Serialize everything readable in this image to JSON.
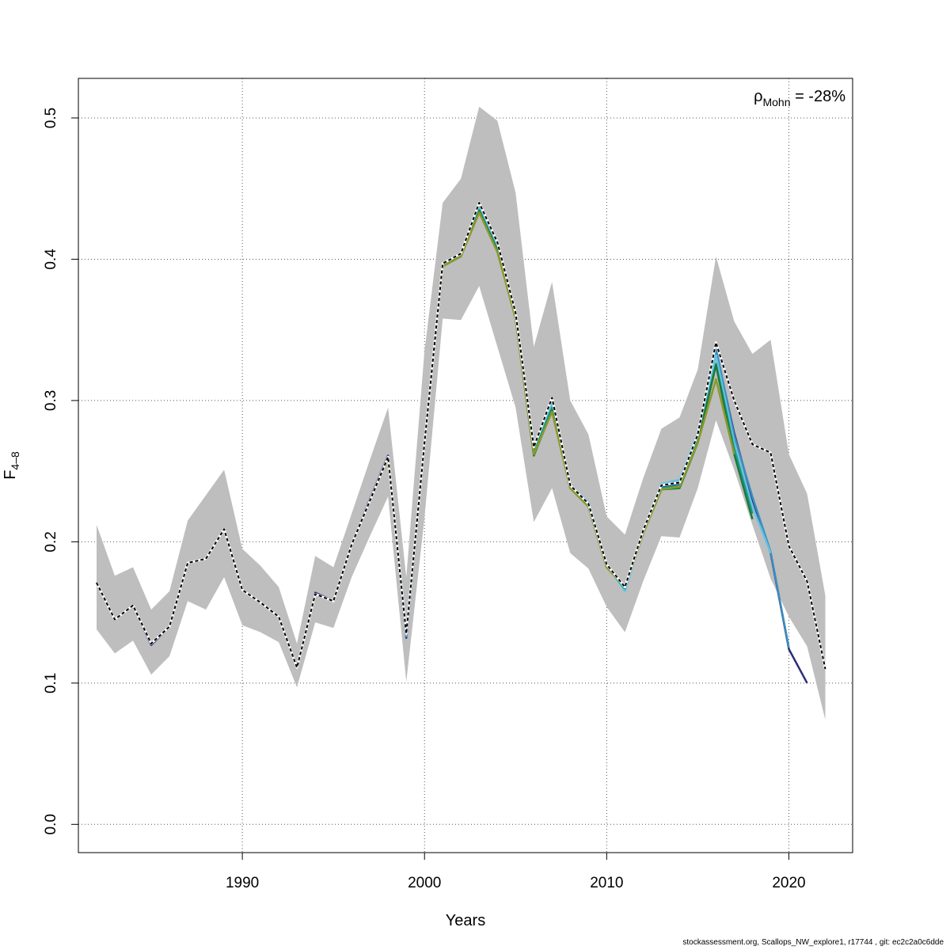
{
  "chart_data": {
    "type": "line",
    "xlabel": "Years",
    "ylabel_main": "F",
    "ylabel_sub": "4–8",
    "xlim": [
      1981,
      2023.5
    ],
    "ylim": [
      -0.02,
      0.528
    ],
    "xticks": [
      1990,
      2000,
      2010,
      2020
    ],
    "yticks": [
      "0.0",
      "0.1",
      "0.2",
      "0.3",
      "0.4",
      "0.5"
    ],
    "grid": true,
    "annotation": {
      "symbol": "ρ",
      "sub": "Mohn",
      "text": " = -28%",
      "placement": "top-right"
    },
    "confidence_band": {
      "x": [
        1982,
        1983,
        1984,
        1985,
        1986,
        1987,
        1988,
        1989,
        1990,
        1991,
        1992,
        1993,
        1994,
        1995,
        1996,
        1997,
        1998,
        1999,
        2000,
        2001,
        2002,
        2003,
        2004,
        2005,
        2006,
        2007,
        2008,
        2009,
        2010,
        2011,
        2012,
        2013,
        2014,
        2015,
        2016,
        2017,
        2018,
        2019,
        2020,
        2021,
        2022
      ],
      "upper": [
        0.212,
        0.176,
        0.182,
        0.152,
        0.165,
        0.215,
        0.233,
        0.251,
        0.195,
        0.183,
        0.168,
        0.128,
        0.19,
        0.182,
        0.22,
        0.258,
        0.295,
        0.175,
        0.335,
        0.44,
        0.457,
        0.508,
        0.498,
        0.447,
        0.338,
        0.384,
        0.3,
        0.276,
        0.218,
        0.205,
        0.245,
        0.28,
        0.288,
        0.322,
        0.402,
        0.356,
        0.333,
        0.343,
        0.262,
        0.234,
        0.162
      ],
      "lower": [
        0.138,
        0.121,
        0.13,
        0.106,
        0.119,
        0.158,
        0.152,
        0.175,
        0.141,
        0.136,
        0.129,
        0.097,
        0.143,
        0.139,
        0.175,
        0.204,
        0.232,
        0.101,
        0.217,
        0.358,
        0.357,
        0.381,
        0.338,
        0.295,
        0.214,
        0.238,
        0.192,
        0.181,
        0.154,
        0.136,
        0.172,
        0.204,
        0.203,
        0.238,
        0.286,
        0.251,
        0.212,
        0.174,
        0.147,
        0.126,
        0.074
      ]
    },
    "series": [
      {
        "color": "#2c2e7a",
        "width": 2.5,
        "dashed": false,
        "x": [
          1982,
          1983,
          1984,
          1985,
          1986,
          1987,
          1988,
          1989,
          1990,
          1991,
          1992,
          1993,
          1994,
          1995,
          1996,
          1997,
          1998,
          1999,
          2000,
          2001,
          2002,
          2003,
          2004,
          2005,
          2006,
          2007,
          2008,
          2009,
          2010,
          2011,
          2012,
          2013,
          2014,
          2015,
          2016,
          2017,
          2018,
          2019,
          2020,
          2021
        ],
        "y": [
          0.171,
          0.145,
          0.155,
          0.127,
          0.14,
          0.185,
          0.188,
          0.209,
          0.166,
          0.157,
          0.147,
          0.111,
          0.164,
          0.158,
          0.198,
          0.23,
          0.261,
          0.132,
          0.27,
          0.397,
          0.403,
          0.438,
          0.41,
          0.36,
          0.265,
          0.298,
          0.24,
          0.226,
          0.184,
          0.167,
          0.208,
          0.239,
          0.241,
          0.274,
          0.335,
          0.277,
          0.23,
          0.192,
          0.124,
          0.1
        ]
      },
      {
        "color": "#3b8fc0",
        "width": 2.5,
        "dashed": false,
        "x": [
          1982,
          1983,
          1984,
          1985,
          1986,
          1987,
          1988,
          1989,
          1990,
          1991,
          1992,
          1993,
          1994,
          1995,
          1996,
          1997,
          1998,
          1999,
          2000,
          2001,
          2002,
          2003,
          2004,
          2005,
          2006,
          2007,
          2008,
          2009,
          2010,
          2011,
          2012,
          2013,
          2014,
          2015,
          2016,
          2017,
          2018,
          2019,
          2020
        ],
        "y": [
          0.171,
          0.145,
          0.155,
          0.128,
          0.14,
          0.185,
          0.188,
          0.209,
          0.166,
          0.157,
          0.147,
          0.111,
          0.163,
          0.158,
          0.198,
          0.229,
          0.26,
          0.133,
          0.27,
          0.397,
          0.403,
          0.437,
          0.409,
          0.36,
          0.266,
          0.298,
          0.24,
          0.227,
          0.184,
          0.166,
          0.208,
          0.24,
          0.243,
          0.276,
          0.337,
          0.275,
          0.232,
          0.193,
          0.125
        ]
      },
      {
        "color": "#66c3e2",
        "width": 2.5,
        "dashed": false,
        "x": [
          1982,
          1983,
          1984,
          1985,
          1986,
          1987,
          1988,
          1989,
          1990,
          1991,
          1992,
          1993,
          1994,
          1995,
          1996,
          1997,
          1998,
          1999,
          2000,
          2001,
          2002,
          2003,
          2004,
          2005,
          2006,
          2007,
          2008,
          2009,
          2010,
          2011,
          2012,
          2013,
          2014,
          2015,
          2016,
          2017,
          2018,
          2019
        ],
        "y": [
          0.171,
          0.145,
          0.155,
          0.128,
          0.14,
          0.185,
          0.188,
          0.209,
          0.166,
          0.157,
          0.147,
          0.111,
          0.163,
          0.158,
          0.198,
          0.229,
          0.26,
          0.134,
          0.27,
          0.396,
          0.403,
          0.436,
          0.408,
          0.36,
          0.267,
          0.297,
          0.24,
          0.228,
          0.184,
          0.165,
          0.208,
          0.241,
          0.244,
          0.277,
          0.332,
          0.27,
          0.225,
          0.192
        ]
      },
      {
        "color": "#1a9a8a",
        "width": 2.5,
        "dashed": false,
        "x": [
          1982,
          1983,
          1984,
          1985,
          1986,
          1987,
          1988,
          1989,
          1990,
          1991,
          1992,
          1993,
          1994,
          1995,
          1996,
          1997,
          1998,
          1999,
          2000,
          2001,
          2002,
          2003,
          2004,
          2005,
          2006,
          2007,
          2008,
          2009,
          2010,
          2011,
          2012,
          2013,
          2014,
          2015,
          2016,
          2017,
          2018
        ],
        "y": [
          0.171,
          0.145,
          0.155,
          0.128,
          0.14,
          0.185,
          0.188,
          0.209,
          0.166,
          0.157,
          0.147,
          0.111,
          0.163,
          0.158,
          0.198,
          0.229,
          0.26,
          0.135,
          0.27,
          0.396,
          0.403,
          0.435,
          0.407,
          0.359,
          0.263,
          0.295,
          0.239,
          0.226,
          0.183,
          0.167,
          0.207,
          0.238,
          0.24,
          0.272,
          0.326,
          0.266,
          0.22
        ]
      },
      {
        "color": "#1f7a3a",
        "width": 2.5,
        "dashed": false,
        "x": [
          1982,
          1983,
          1984,
          1985,
          1986,
          1987,
          1988,
          1989,
          1990,
          1991,
          1992,
          1993,
          1994,
          1995,
          1996,
          1997,
          1998,
          1999,
          2000,
          2001,
          2002,
          2003,
          2004,
          2005,
          2006,
          2007,
          2008,
          2009,
          2010,
          2011,
          2012,
          2013,
          2014,
          2015,
          2016,
          2017,
          2018
        ],
        "y": [
          0.171,
          0.145,
          0.155,
          0.128,
          0.14,
          0.185,
          0.188,
          0.209,
          0.166,
          0.157,
          0.147,
          0.111,
          0.163,
          0.158,
          0.198,
          0.229,
          0.26,
          0.135,
          0.27,
          0.395,
          0.402,
          0.434,
          0.406,
          0.358,
          0.261,
          0.293,
          0.238,
          0.225,
          0.182,
          0.168,
          0.206,
          0.237,
          0.238,
          0.27,
          0.325,
          0.262,
          0.216
        ]
      },
      {
        "color": "#8a9a2a",
        "width": 2.5,
        "dashed": false,
        "x": [
          1982,
          1983,
          1984,
          1985,
          1986,
          1987,
          1988,
          1989,
          1990,
          1991,
          1992,
          1993,
          1994,
          1995,
          1996,
          1997,
          1998,
          1999,
          2000,
          2001,
          2002,
          2003,
          2004,
          2005,
          2006,
          2007,
          2008,
          2009,
          2010,
          2011,
          2012,
          2013,
          2014,
          2015,
          2016,
          2017
        ],
        "y": [
          0.171,
          0.145,
          0.155,
          0.128,
          0.14,
          0.185,
          0.188,
          0.209,
          0.166,
          0.157,
          0.147,
          0.111,
          0.163,
          0.158,
          0.198,
          0.229,
          0.259,
          0.136,
          0.27,
          0.395,
          0.402,
          0.433,
          0.405,
          0.358,
          0.262,
          0.292,
          0.238,
          0.225,
          0.182,
          0.168,
          0.206,
          0.237,
          0.239,
          0.27,
          0.315,
          0.262
        ]
      },
      {
        "color": "#000000",
        "width": 2,
        "dashed": true,
        "x": [
          1982,
          1983,
          1984,
          1985,
          1986,
          1987,
          1988,
          1989,
          1990,
          1991,
          1992,
          1993,
          1994,
          1995,
          1996,
          1997,
          1998,
          1999,
          2000,
          2001,
          2002,
          2003,
          2004,
          2005,
          2006,
          2007,
          2008,
          2009,
          2010,
          2011,
          2012,
          2013,
          2014,
          2015,
          2016,
          2017,
          2018,
          2019,
          2020,
          2021,
          2022
        ],
        "y": [
          0.171,
          0.145,
          0.155,
          0.128,
          0.14,
          0.185,
          0.188,
          0.209,
          0.166,
          0.157,
          0.147,
          0.111,
          0.163,
          0.158,
          0.198,
          0.229,
          0.26,
          0.135,
          0.27,
          0.397,
          0.404,
          0.44,
          0.412,
          0.362,
          0.267,
          0.302,
          0.24,
          0.227,
          0.184,
          0.168,
          0.208,
          0.24,
          0.242,
          0.276,
          0.341,
          0.3,
          0.269,
          0.263,
          0.197,
          0.172,
          0.11
        ]
      }
    ]
  },
  "footer": "stockassessment.org, Scallops_NW_explore1, r17744 , git: ec2c2a0c6dde"
}
